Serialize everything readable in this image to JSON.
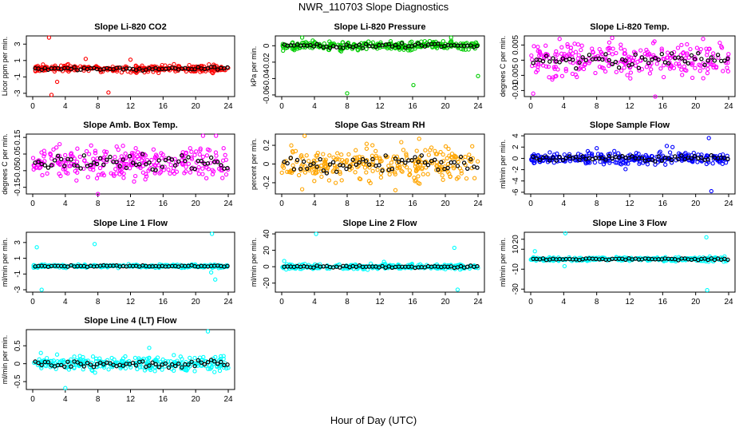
{
  "figure": {
    "title": "NWR_110703  Slope Diagnostics",
    "xlabel": "Hour of Day (UTC)"
  },
  "colors": {
    "series_black": "#000000",
    "red": "#ff0000",
    "green": "#00cc00",
    "magenta": "#ff00ff",
    "orange": "#ffa500",
    "blue": "#0000ff",
    "cyan": "#00ffff"
  },
  "chart_data": [
    {
      "type": "scatter",
      "title": "Slope Li-820 CO2",
      "ylabel": "Licor ppm per min.",
      "xlim": [
        0,
        24
      ],
      "xticks": [
        0,
        4,
        8,
        12,
        16,
        20,
        24
      ],
      "ylim": [
        -3.4,
        4.0
      ],
      "yticks": [
        -3,
        -1,
        1,
        3
      ],
      "color": "red",
      "spread": 0.3,
      "outliers": [
        [
          2.0,
          3.8
        ],
        [
          2.3,
          -3.2
        ],
        [
          9.3,
          -2.9
        ],
        [
          3.0,
          -1.6
        ],
        [
          6.5,
          1.2
        ],
        [
          12.0,
          1.1
        ]
      ]
    },
    {
      "type": "scatter",
      "title": "Slope Li-820 Pressure",
      "ylabel": "kPa per min.",
      "xlim": [
        0,
        24
      ],
      "xticks": [
        0,
        4,
        8,
        12,
        16,
        20,
        24
      ],
      "ylim": [
        -0.062,
        0.012
      ],
      "yticks": [
        -0.06,
        -0.04,
        -0.02,
        0.0
      ],
      "color": "green",
      "spread": 0.004,
      "outliers": [
        [
          8.0,
          -0.058
        ],
        [
          16.1,
          -0.048
        ],
        [
          24.0,
          -0.037
        ],
        [
          2.5,
          0.01
        ],
        [
          20.7,
          0.01
        ]
      ]
    },
    {
      "type": "scatter",
      "title": "Slope Li-820 Temp.",
      "ylabel": "degrees C per min.",
      "xlim": [
        0,
        24
      ],
      "xticks": [
        0,
        4,
        8,
        12,
        16,
        20,
        24
      ],
      "ylim": [
        -0.012,
        0.008
      ],
      "yticks": [
        -0.01,
        -0.005,
        0.0,
        0.005
      ],
      "color": "magenta",
      "spread": 0.004,
      "outliers": [
        [
          3.5,
          0.007
        ],
        [
          20.9,
          0.007
        ],
        [
          15.1,
          -0.012
        ],
        [
          0.3,
          -0.011
        ]
      ]
    },
    {
      "type": "scatter",
      "title": "Slope Amb. Box Temp.",
      "ylabel": "degrees C per min.",
      "xlim": [
        0,
        24
      ],
      "xticks": [
        0,
        4,
        8,
        12,
        16,
        20,
        24
      ],
      "ylim": [
        -0.19,
        0.17
      ],
      "yticks": [
        -0.15,
        -0.05,
        0.05,
        0.15
      ],
      "color": "magenta",
      "spread": 0.07,
      "outliers": [
        [
          8.0,
          -0.19
        ],
        [
          22.5,
          0.16
        ],
        [
          20.9,
          0.16
        ]
      ]
    },
    {
      "type": "scatter",
      "title": "Slope Gas Stream RH",
      "ylabel": "percent per min.",
      "xlim": [
        0,
        24
      ],
      "xticks": [
        0,
        4,
        8,
        12,
        16,
        20,
        24
      ],
      "ylim": [
        -0.32,
        0.32
      ],
      "yticks": [
        -0.2,
        0.0,
        0.2
      ],
      "color": "orange",
      "spread": 0.13,
      "outliers": [
        [
          2.8,
          0.3
        ],
        [
          2.5,
          -0.27
        ],
        [
          13.9,
          -0.28
        ],
        [
          16.8,
          0.27
        ]
      ]
    },
    {
      "type": "scatter",
      "title": "Slope Sample Flow",
      "ylabel": "ml/min per min.",
      "xlim": [
        0,
        24
      ],
      "xticks": [
        0,
        4,
        8,
        12,
        16,
        20,
        24
      ],
      "ylim": [
        -6.3,
        4.3
      ],
      "yticks": [
        -6,
        -4,
        -2,
        0,
        2,
        4
      ],
      "color": "blue",
      "spread": 0.7,
      "outliers": [
        [
          21.6,
          3.6
        ],
        [
          21.9,
          -5.8
        ],
        [
          16.5,
          2.2
        ],
        [
          17.2,
          2.0
        ],
        [
          8.0,
          1.8
        ],
        [
          11.5,
          -1.9
        ]
      ]
    },
    {
      "type": "scatter",
      "title": "Slope Line 1 Flow",
      "ylabel": "ml/min per min.",
      "xlim": [
        0,
        24
      ],
      "xticks": [
        0,
        4,
        8,
        12,
        16,
        20,
        24
      ],
      "ylim": [
        -3.3,
        4.3
      ],
      "yticks": [
        -3,
        -1,
        1,
        3
      ],
      "color": "cyan",
      "spread": 0.15,
      "outliers": [
        [
          0.5,
          2.4
        ],
        [
          7.6,
          2.8
        ],
        [
          1.1,
          -3.0
        ],
        [
          22.0,
          4.1
        ],
        [
          22.4,
          -1.7
        ],
        [
          21.9,
          -0.8
        ]
      ]
    },
    {
      "type": "scatter",
      "title": "Slope Line 2 Flow",
      "ylabel": "ml/min per min.",
      "xlim": [
        0,
        24
      ],
      "xticks": [
        0,
        4,
        8,
        12,
        16,
        20,
        24
      ],
      "ylim": [
        -31,
        42
      ],
      "yticks": [
        -20,
        0,
        20,
        40
      ],
      "color": "cyan",
      "spread": 2.0,
      "outliers": [
        [
          4.2,
          40
        ],
        [
          21.1,
          23
        ],
        [
          21.5,
          -28
        ],
        [
          0.3,
          7
        ],
        [
          12.5,
          6
        ]
      ]
    },
    {
      "type": "scatter",
      "title": "Slope Line 3 Flow",
      "ylabel": "ml/min per min.",
      "xlim": [
        0,
        24
      ],
      "xticks": [
        0,
        4,
        8,
        12,
        16,
        20,
        24
      ],
      "ylim": [
        -33,
        27
      ],
      "yticks": [
        -30,
        -10,
        10,
        20
      ],
      "color": "cyan",
      "spread": 1.5,
      "outliers": [
        [
          4.2,
          26
        ],
        [
          21.3,
          22
        ],
        [
          21.4,
          -31
        ],
        [
          4.1,
          -7
        ],
        [
          0.5,
          8
        ]
      ]
    },
    {
      "type": "scatter",
      "title": "Slope Line 4 (LT) Flow",
      "ylabel": "ml/min per min.",
      "xlim": [
        0,
        24
      ],
      "xticks": [
        0,
        4,
        8,
        12,
        16,
        20,
        24
      ],
      "ylim": [
        -0.72,
        0.95
      ],
      "yticks": [
        -0.5,
        0.0,
        0.5
      ],
      "color": "cyan",
      "spread": 0.15,
      "outliers": [
        [
          21.5,
          0.9
        ],
        [
          4.0,
          -0.68
        ],
        [
          14.3,
          0.44
        ],
        [
          1.0,
          0.3
        ]
      ]
    }
  ]
}
